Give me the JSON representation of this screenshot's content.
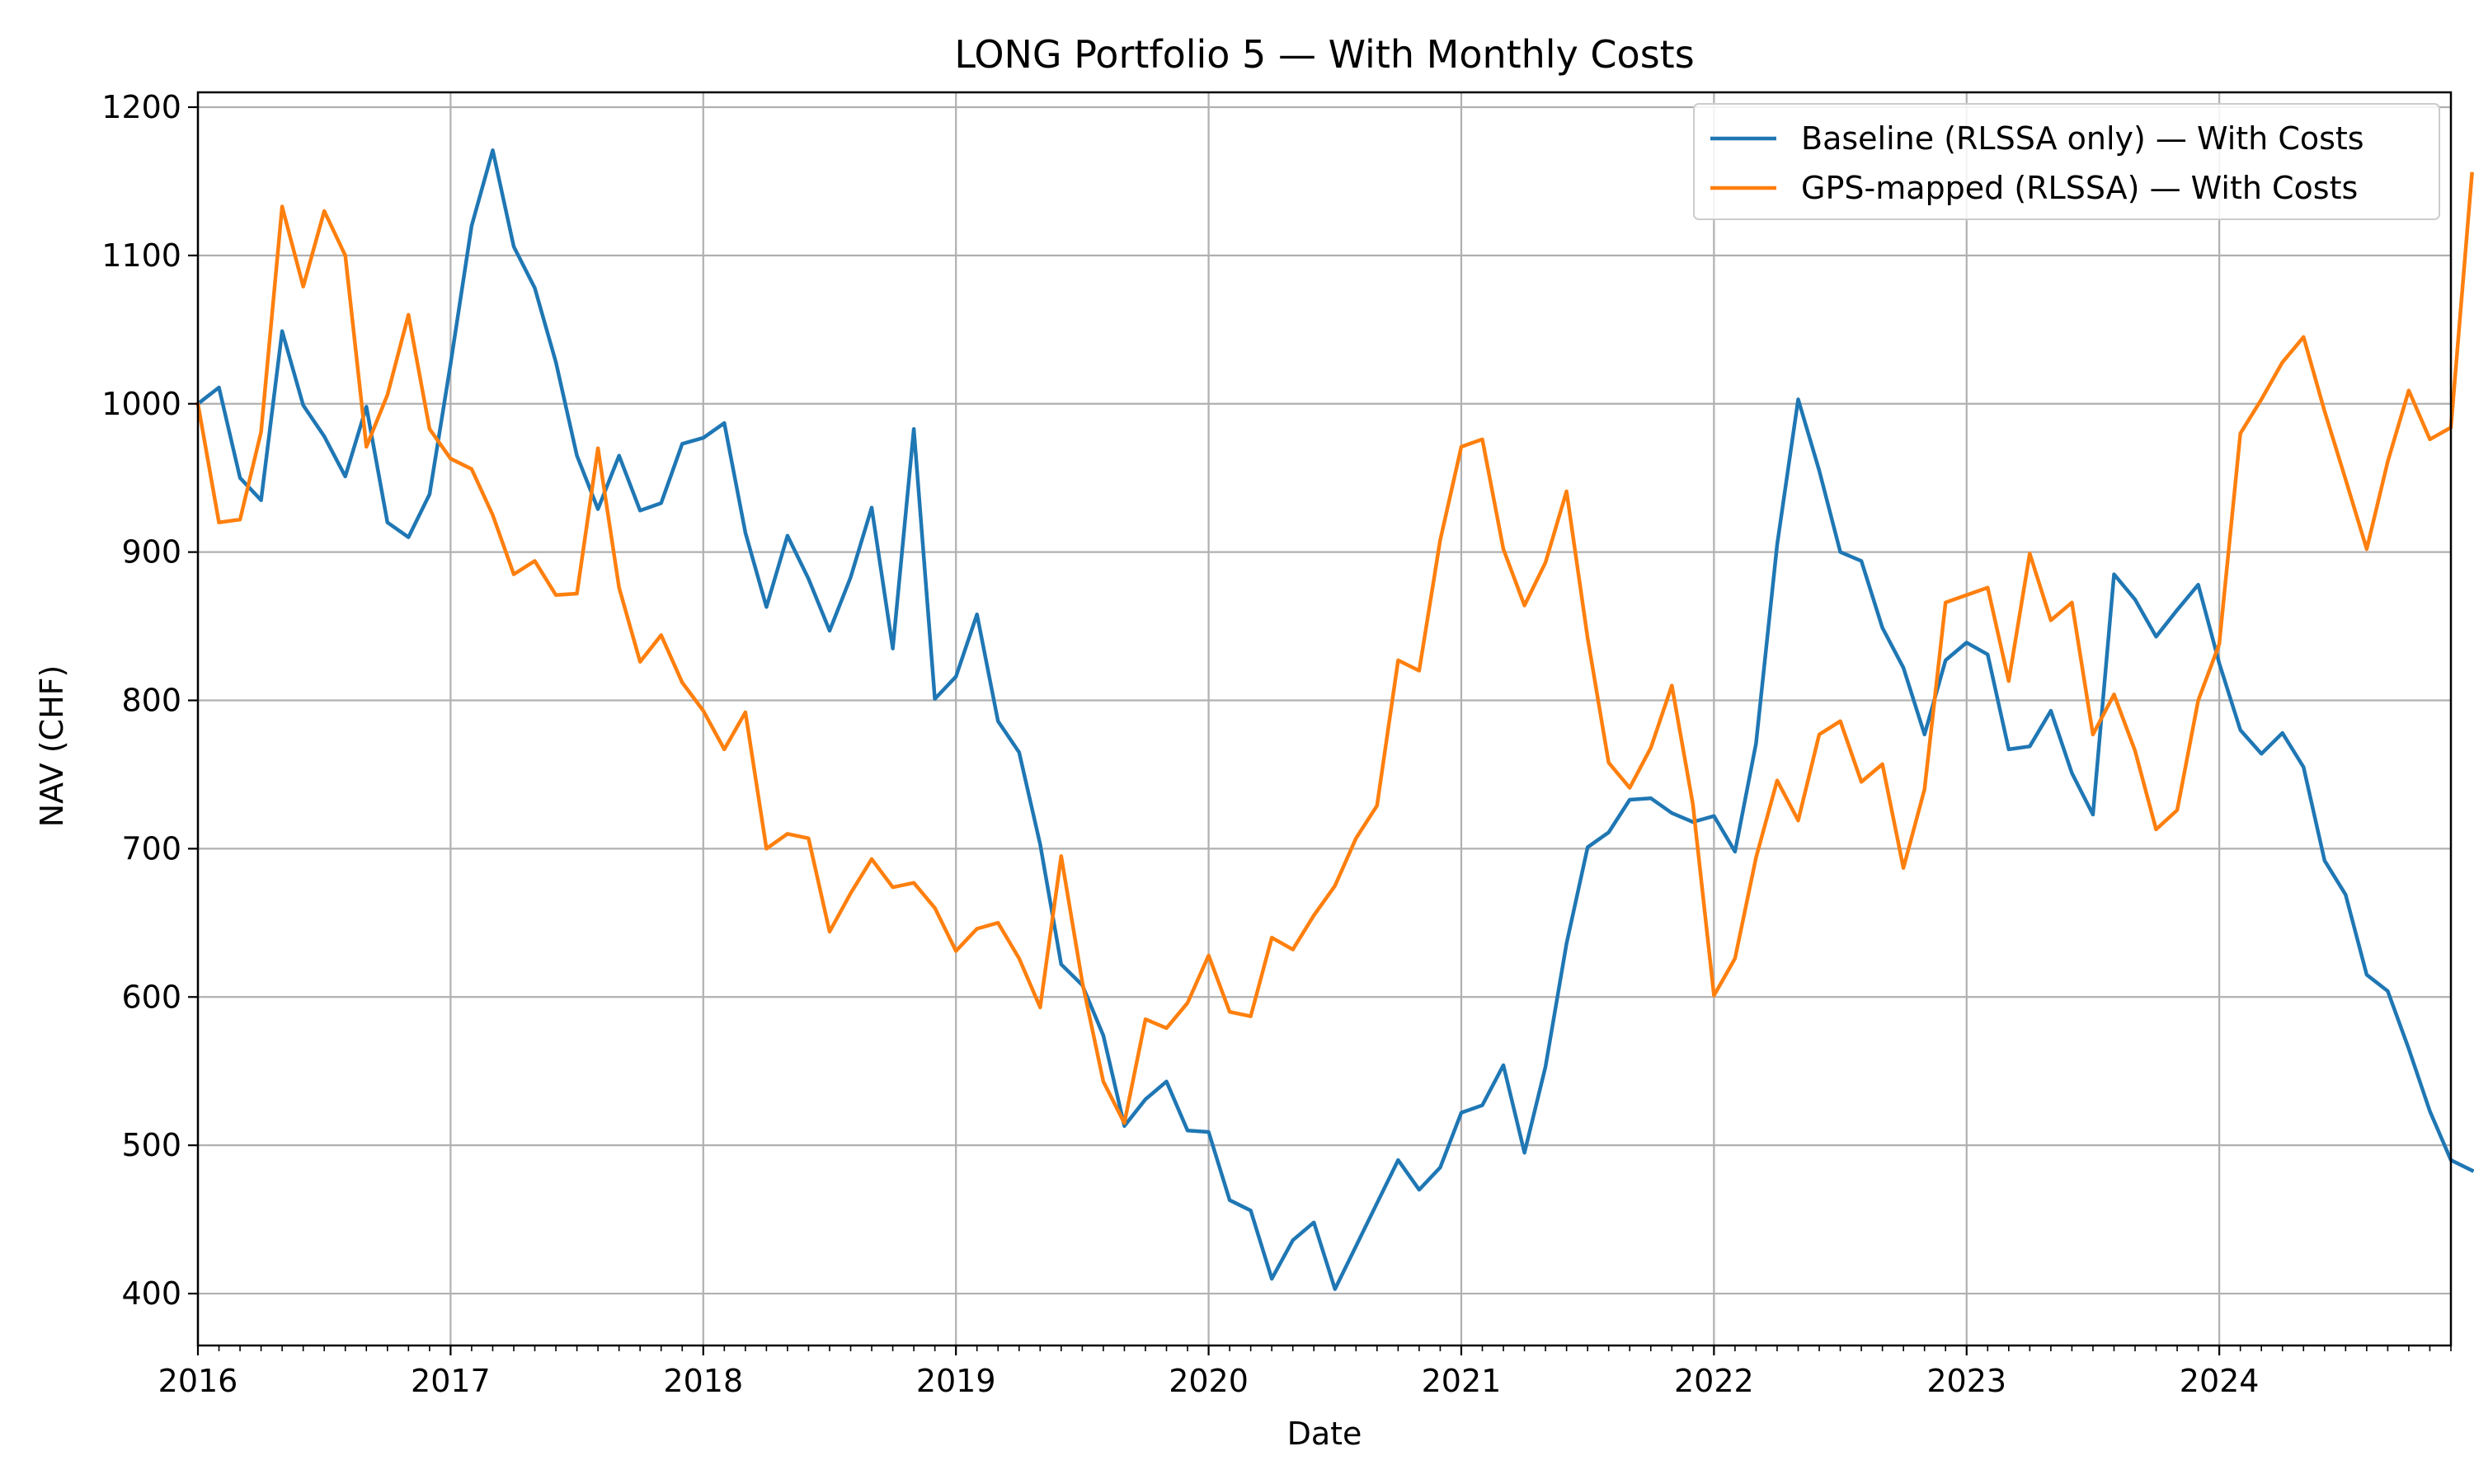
{
  "chart_data": {
    "type": "line",
    "title": "LONG Portfolio 5 — With Monthly Costs",
    "xlabel": "Date",
    "ylabel": "NAV (CHF)",
    "x_start": "2016-01",
    "x_freq": "monthly",
    "xlim": [
      "2016-01",
      "2024-12"
    ],
    "ylim": [
      365,
      1210
    ],
    "x_ticks": [
      "2016",
      "2017",
      "2018",
      "2019",
      "2020",
      "2021",
      "2022",
      "2023",
      "2024"
    ],
    "y_ticks": [
      400,
      500,
      600,
      700,
      800,
      900,
      1000,
      1100,
      1200
    ],
    "grid": true,
    "legend_position": "upper-right",
    "series": [
      {
        "name": "Baseline (RLSSA only) — With Costs",
        "color": "#1f77b4",
        "values": [
          1000,
          1011,
          950,
          935,
          1049,
          999,
          978,
          951,
          998,
          920,
          910,
          939,
          1027,
          1120,
          1171,
          1106,
          1078,
          1028,
          965,
          929,
          965,
          928,
          933,
          973,
          977,
          987,
          913,
          863,
          911,
          882,
          847,
          883,
          930,
          835,
          983,
          801,
          816,
          858,
          786,
          765,
          703,
          622,
          608,
          574,
          513,
          531,
          543,
          510,
          509,
          463,
          456,
          410,
          436,
          448,
          403,
          432,
          461,
          490,
          470,
          485,
          522,
          527,
          554,
          495,
          553,
          636,
          701,
          711,
          733,
          734,
          724,
          718,
          722,
          698,
          771,
          905,
          1003,
          955,
          900,
          894,
          849,
          822,
          777,
          827,
          839,
          831,
          767,
          769,
          793,
          751,
          723,
          885,
          868,
          843,
          861,
          878,
          825,
          780,
          764,
          778,
          755,
          692,
          669,
          615,
          604,
          565,
          523,
          490,
          483
        ]
      },
      {
        "name": "GPS-mapped (RLSSA) — With Costs",
        "color": "#ff7f0e",
        "values": [
          1000,
          920,
          922,
          981,
          1133,
          1079,
          1130,
          1100,
          971,
          1006,
          1060,
          983,
          963,
          956,
          925,
          885,
          894,
          871,
          872,
          970,
          876,
          826,
          844,
          812,
          793,
          767,
          792,
          700,
          710,
          707,
          644,
          670,
          693,
          674,
          677,
          660,
          631,
          646,
          650,
          626,
          593,
          695,
          610,
          543,
          515,
          585,
          579,
          596,
          628,
          590,
          587,
          640,
          632,
          655,
          675,
          707,
          729,
          827,
          820,
          908,
          971,
          976,
          902,
          864,
          893,
          941,
          842,
          758,
          741,
          768,
          810,
          730,
          601,
          626,
          694,
          746,
          719,
          777,
          786,
          745,
          757,
          687,
          740,
          866,
          871,
          876,
          813,
          899,
          854,
          866,
          777,
          804,
          766,
          713,
          726,
          800,
          838,
          980,
          1003,
          1028,
          1045,
          995,
          949,
          902,
          961,
          1009,
          976,
          984,
          1155
        ]
      }
    ]
  }
}
